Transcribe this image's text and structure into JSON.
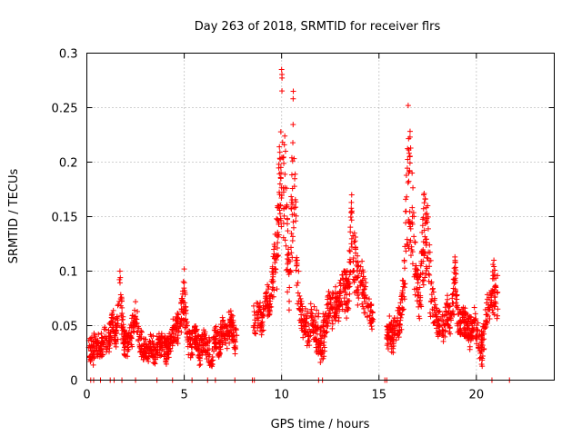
{
  "chart_data": {
    "type": "scatter",
    "title": "Day 263 of 2018, SRMTID for receiver flrs",
    "xlabel": "GPS time / hours",
    "ylabel": "SRMTID / TECUs",
    "xlim": [
      0,
      24
    ],
    "ylim": [
      0,
      0.3
    ],
    "xticks": [
      0,
      5,
      10,
      15,
      20
    ],
    "xtick_labels": [
      "0",
      "5",
      "10",
      "15",
      "20"
    ],
    "yticks": [
      0,
      0.05,
      0.1,
      0.15,
      0.2,
      0.25,
      0.3
    ],
    "ytick_labels": [
      "0",
      "0.05",
      "0.1",
      "0.15",
      "0.2",
      "0.25",
      "0.3"
    ],
    "grid": true,
    "marker": "+",
    "color": "#ff0000",
    "series": [
      {
        "name": "SRMTID",
        "segments": [
          {
            "x": 0.1,
            "y": 0.03
          },
          {
            "x": 0.3,
            "y": 0.022
          },
          {
            "x": 0.5,
            "y": 0.035
          },
          {
            "x": 0.7,
            "y": 0.028
          },
          {
            "x": 0.9,
            "y": 0.04
          },
          {
            "x": 1.1,
            "y": 0.033
          },
          {
            "x": 1.3,
            "y": 0.06
          },
          {
            "x": 1.5,
            "y": 0.045
          },
          {
            "x": 1.7,
            "y": 0.1
          },
          {
            "x": 1.9,
            "y": 0.035
          },
          {
            "x": 2.1,
            "y": 0.03
          },
          {
            "x": 2.3,
            "y": 0.05
          },
          {
            "x": 2.5,
            "y": 0.072
          },
          {
            "x": 2.7,
            "y": 0.04
          },
          {
            "x": 2.9,
            "y": 0.025
          },
          {
            "x": 3.1,
            "y": 0.02
          },
          {
            "x": 3.3,
            "y": 0.028
          },
          {
            "x": 3.5,
            "y": 0.015
          },
          {
            "x": 3.7,
            "y": 0.035
          },
          {
            "x": 3.9,
            "y": 0.03
          },
          {
            "x": 4.1,
            "y": 0.02
          },
          {
            "x": 4.3,
            "y": 0.04
          },
          {
            "x": 4.5,
            "y": 0.05
          },
          {
            "x": 4.7,
            "y": 0.06
          },
          {
            "x": 4.9,
            "y": 0.075
          },
          {
            "x": 5.0,
            "y": 0.102
          },
          {
            "x": 5.2,
            "y": 0.035
          },
          {
            "x": 5.4,
            "y": 0.03
          },
          {
            "x": 5.6,
            "y": 0.045
          },
          {
            "x": 5.8,
            "y": 0.02
          },
          {
            "x": 6.0,
            "y": 0.04
          },
          {
            "x": 6.2,
            "y": 0.025
          },
          {
            "x": 6.4,
            "y": 0.015
          },
          {
            "x": 6.6,
            "y": 0.04
          },
          {
            "x": 6.8,
            "y": 0.03
          },
          {
            "x": 7.0,
            "y": 0.055
          },
          {
            "x": 7.2,
            "y": 0.045
          },
          {
            "x": 7.4,
            "y": 0.06
          },
          {
            "x": 7.6,
            "y": 0.035
          },
          {
            "x": 8.6,
            "y": 0.05
          },
          {
            "x": 8.8,
            "y": 0.06
          },
          {
            "x": 9.0,
            "y": 0.045
          },
          {
            "x": 9.2,
            "y": 0.08
          },
          {
            "x": 9.4,
            "y": 0.07
          },
          {
            "x": 9.6,
            "y": 0.12
          },
          {
            "x": 9.8,
            "y": 0.16
          },
          {
            "x": 10.0,
            "y": 0.285
          },
          {
            "x": 10.2,
            "y": 0.21
          },
          {
            "x": 10.4,
            "y": 0.085
          },
          {
            "x": 10.6,
            "y": 0.265
          },
          {
            "x": 10.8,
            "y": 0.11
          },
          {
            "x": 11.0,
            "y": 0.06
          },
          {
            "x": 11.2,
            "y": 0.045
          },
          {
            "x": 11.4,
            "y": 0.04
          },
          {
            "x": 11.6,
            "y": 0.055
          },
          {
            "x": 11.8,
            "y": 0.035
          },
          {
            "x": 12.0,
            "y": 0.025
          },
          {
            "x": 12.2,
            "y": 0.03
          },
          {
            "x": 12.4,
            "y": 0.07
          },
          {
            "x": 12.6,
            "y": 0.065
          },
          {
            "x": 12.8,
            "y": 0.075
          },
          {
            "x": 13.0,
            "y": 0.08
          },
          {
            "x": 13.2,
            "y": 0.1
          },
          {
            "x": 13.4,
            "y": 0.085
          },
          {
            "x": 13.6,
            "y": 0.17
          },
          {
            "x": 13.8,
            "y": 0.12
          },
          {
            "x": 14.0,
            "y": 0.1
          },
          {
            "x": 14.2,
            "y": 0.095
          },
          {
            "x": 14.4,
            "y": 0.07
          },
          {
            "x": 14.6,
            "y": 0.055
          },
          {
            "x": 15.5,
            "y": 0.04
          },
          {
            "x": 15.7,
            "y": 0.035
          },
          {
            "x": 15.9,
            "y": 0.05
          },
          {
            "x": 16.1,
            "y": 0.06
          },
          {
            "x": 16.3,
            "y": 0.11
          },
          {
            "x": 16.5,
            "y": 0.252
          },
          {
            "x": 16.7,
            "y": 0.19
          },
          {
            "x": 16.9,
            "y": 0.105
          },
          {
            "x": 17.1,
            "y": 0.085
          },
          {
            "x": 17.3,
            "y": 0.17
          },
          {
            "x": 17.5,
            "y": 0.16
          },
          {
            "x": 17.7,
            "y": 0.09
          },
          {
            "x": 17.9,
            "y": 0.06
          },
          {
            "x": 18.1,
            "y": 0.05
          },
          {
            "x": 18.3,
            "y": 0.045
          },
          {
            "x": 18.5,
            "y": 0.07
          },
          {
            "x": 18.7,
            "y": 0.055
          },
          {
            "x": 18.9,
            "y": 0.113
          },
          {
            "x": 19.1,
            "y": 0.045
          },
          {
            "x": 19.3,
            "y": 0.06
          },
          {
            "x": 19.5,
            "y": 0.05
          },
          {
            "x": 19.7,
            "y": 0.04
          },
          {
            "x": 19.9,
            "y": 0.055
          },
          {
            "x": 20.1,
            "y": 0.03
          },
          {
            "x": 20.3,
            "y": 0.02
          },
          {
            "x": 20.5,
            "y": 0.06
          },
          {
            "x": 20.7,
            "y": 0.08
          },
          {
            "x": 20.9,
            "y": 0.11
          },
          {
            "x": 21.0,
            "y": 0.085
          }
        ]
      }
    ],
    "segment_ranges": [
      {
        "start": 0.1,
        "end": 7.7,
        "base": 0.035,
        "spread": 0.012
      },
      {
        "start": 8.55,
        "end": 14.7,
        "base": 0.06,
        "spread": 0.015
      },
      {
        "start": 15.4,
        "end": 21.1,
        "base": 0.05,
        "spread": 0.014
      }
    ],
    "zero_markers_x": [
      0.2,
      0.35,
      0.7,
      1.2,
      1.4,
      1.8,
      2.5,
      3.6,
      4.4,
      5.4,
      6.2,
      6.6,
      7.6,
      8.5,
      8.6,
      11.9,
      12.1,
      15.3,
      15.4,
      20.8,
      21.7
    ]
  }
}
